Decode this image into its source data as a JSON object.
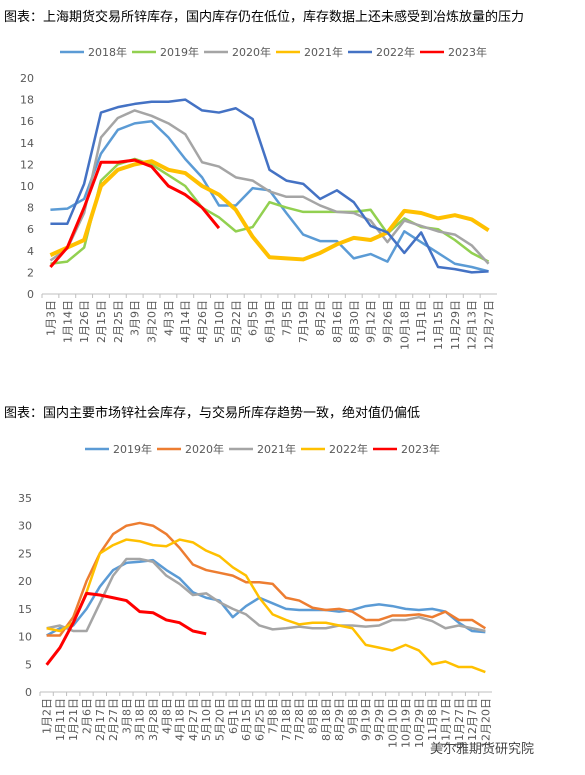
{
  "chart_data": [
    {
      "type": "line",
      "title": "图表：上海期货交易所锌库存，国内库存仍在低位，库存数据上还未感受到冶炼放量的压力",
      "categories": [
        "1月3日",
        "1月14日",
        "1月26日",
        "2月15日",
        "2月25日",
        "3月9日",
        "3月20日",
        "4月3日",
        "4月14日",
        "4月26日",
        "5月10日",
        "5月22日",
        "6月5日",
        "6月19日",
        "7月5日",
        "7月19日",
        "8月2日",
        "8月16日",
        "8月30日",
        "9月12日",
        "9月26日",
        "10月18日",
        "11月1日",
        "11月15日",
        "11月29日",
        "12月13日",
        "12月27日"
      ],
      "ylim": [
        0,
        20
      ],
      "yticks": [
        0,
        2,
        4,
        6,
        8,
        10,
        12,
        14,
        16,
        18,
        20
      ],
      "grid": false,
      "series": [
        {
          "name": "2018年",
          "color": "#5b9bd5",
          "values": [
            7.8,
            7.9,
            8.8,
            13.0,
            15.2,
            15.8,
            16.0,
            14.5,
            12.5,
            10.8,
            8.2,
            8.2,
            9.8,
            9.6,
            7.5,
            5.5,
            4.9,
            4.9,
            3.3,
            3.7,
            3.0,
            5.8,
            4.8,
            3.8,
            2.8,
            2.5,
            2.1
          ]
        },
        {
          "name": "2019年",
          "color": "#92d050",
          "values": [
            2.8,
            3.0,
            4.3,
            10.5,
            12.0,
            12.5,
            12.0,
            11.0,
            10.0,
            8.0,
            7.1,
            5.8,
            6.2,
            8.5,
            8.0,
            7.6,
            7.6,
            7.6,
            7.6,
            7.8,
            5.6,
            7.0,
            6.2,
            6.0,
            5.0,
            3.8,
            3.0
          ]
        },
        {
          "name": "2020年",
          "color": "#a5a5a5",
          "values": [
            3.1,
            4.2,
            7.5,
            14.5,
            16.3,
            17.0,
            16.5,
            15.8,
            14.8,
            12.2,
            11.8,
            10.8,
            10.5,
            9.5,
            9.0,
            9.0,
            8.2,
            7.6,
            7.5,
            6.8,
            4.8,
            6.8,
            6.3,
            5.8,
            5.5,
            4.5,
            2.8
          ]
        },
        {
          "name": "2021年",
          "color": "#ffc000",
          "values": [
            3.6,
            4.3,
            5.0,
            10.0,
            11.5,
            12.0,
            12.3,
            11.5,
            11.2,
            10.0,
            9.2,
            7.8,
            5.3,
            3.4,
            3.3,
            3.2,
            3.8,
            4.6,
            5.2,
            5.0,
            5.7,
            7.7,
            7.5,
            7.0,
            7.3,
            6.9,
            5.9
          ]
        },
        {
          "name": "2022年",
          "color": "#4472c4",
          "values": [
            6.5,
            6.5,
            10.2,
            16.8,
            17.3,
            17.6,
            17.8,
            17.8,
            18.0,
            17.0,
            16.8,
            17.2,
            16.2,
            11.5,
            10.5,
            10.2,
            8.8,
            9.6,
            8.5,
            6.3,
            5.7,
            3.8,
            5.7,
            2.5,
            2.3,
            2.0,
            2.1
          ]
        },
        {
          "name": "2023年",
          "color": "#ff0000",
          "values": [
            2.5,
            4.3,
            8.0,
            12.2,
            12.2,
            12.4,
            11.8,
            10.0,
            9.2,
            8.0,
            6.1,
            null,
            null,
            null,
            null,
            null,
            null,
            null,
            null,
            null,
            null,
            null,
            null,
            null,
            null,
            null,
            null
          ]
        }
      ]
    },
    {
      "type": "line",
      "title": "图表：国内主要市场锌社会库存，与交易所库存趋势一致，绝对值仍偏低",
      "categories": [
        "1月2日",
        "1月11日",
        "1月21日",
        "2月6日",
        "2月17日",
        "2月27日",
        "3月8日",
        "3月18日",
        "3月28日",
        "4月8日",
        "4月18日",
        "4月27日",
        "5月10日",
        "5月20日",
        "6月1日",
        "6月15日",
        "6月25日",
        "7月8日",
        "7月18日",
        "7月28日",
        "8月8日",
        "8月18日",
        "8月29日",
        "9月8日",
        "9月19日",
        "9月29日",
        "10月10日",
        "10月19日",
        "10月29日",
        "11月8日",
        "11月17日",
        "11月27日",
        "12月7日",
        "12月20日"
      ],
      "ylim": [
        0,
        35
      ],
      "yticks": [
        0,
        5,
        10,
        15,
        20,
        25,
        30,
        35
      ],
      "grid": false,
      "series": [
        {
          "name": "2019年",
          "color": "#5b9bd5",
          "values": [
            10.2,
            11.5,
            12,
            15,
            19,
            22,
            23.3,
            23.5,
            23.8,
            22,
            20.5,
            18,
            17,
            16.5,
            13.5,
            15.5,
            17,
            16,
            15,
            14.8,
            14.8,
            14.8,
            14.5,
            14.8,
            15.5,
            15.8,
            15.5,
            15,
            14.8,
            15,
            14.5,
            12.5,
            11,
            10.8
          ]
        },
        {
          "name": "2020年",
          "color": "#ed7d31",
          "values": [
            10.2,
            10.2,
            13.5,
            20,
            25,
            28.5,
            30,
            30.5,
            30,
            28.5,
            26,
            23,
            22,
            21.5,
            21,
            19.8,
            19.8,
            19.5,
            17,
            16.5,
            15.2,
            14.8,
            15,
            14.5,
            13,
            13,
            13.8,
            13.8,
            14,
            13.5,
            14.5,
            13,
            13,
            11.5
          ]
        },
        {
          "name": "2021年",
          "color": "#a5a5a5",
          "values": [
            11.5,
            12,
            11,
            11,
            16,
            21,
            24,
            24,
            23.5,
            21,
            19.5,
            17.5,
            17.8,
            16.2,
            15,
            14,
            12,
            11.3,
            11.5,
            11.8,
            11.5,
            11.5,
            12,
            12,
            11.8,
            12,
            13,
            13,
            13.5,
            12.8,
            11.5,
            12,
            11.5,
            11
          ]
        },
        {
          "name": "2022年",
          "color": "#ffc000",
          "values": [
            11.5,
            11,
            12.5,
            18,
            25,
            26.5,
            27.5,
            27.2,
            26.5,
            26.3,
            27.5,
            27,
            25.5,
            24.5,
            22.5,
            21,
            17,
            14,
            13,
            12.2,
            12.5,
            12.5,
            12,
            11.5,
            8.5,
            8,
            7.5,
            8.5,
            7.5,
            5,
            5.5,
            4.5,
            4.5,
            3.6
          ]
        },
        {
          "name": "2023年",
          "color": "#ff0000",
          "values": [
            4.9,
            8,
            12.5,
            17.8,
            17.5,
            17,
            16.5,
            14.5,
            14.3,
            13,
            12.5,
            11,
            10.5,
            null,
            null,
            null,
            null,
            null,
            null,
            null,
            null,
            null,
            null,
            null,
            null,
            null,
            null,
            null,
            null,
            null,
            null,
            null,
            null,
            null
          ]
        }
      ]
    }
  ],
  "watermark": "美尔雅期货研究院"
}
